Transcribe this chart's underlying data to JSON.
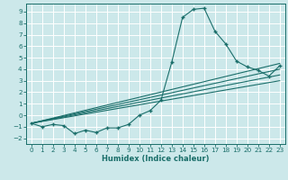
{
  "xlabel": "Humidex (Indice chaleur)",
  "bg_color": "#cce8ea",
  "grid_color": "#b0d0d5",
  "line_color": "#1a6e6a",
  "xlim": [
    -0.5,
    23.5
  ],
  "ylim": [
    -2.5,
    9.7
  ],
  "xticks": [
    0,
    1,
    2,
    3,
    4,
    5,
    6,
    7,
    8,
    9,
    10,
    11,
    12,
    13,
    14,
    15,
    16,
    17,
    18,
    19,
    20,
    21,
    22,
    23
  ],
  "yticks": [
    -2,
    -1,
    0,
    1,
    2,
    3,
    4,
    5,
    6,
    7,
    8,
    9
  ],
  "main_x": [
    0,
    1,
    2,
    3,
    4,
    5,
    6,
    7,
    8,
    9,
    10,
    11,
    12,
    13,
    14,
    15,
    16,
    17,
    18,
    19,
    20,
    21,
    22,
    23
  ],
  "main_y": [
    -0.7,
    -1.0,
    -0.8,
    -0.9,
    -1.6,
    -1.3,
    -1.5,
    -1.1,
    -1.1,
    -0.8,
    -0.0,
    0.4,
    1.3,
    4.6,
    8.5,
    9.2,
    9.3,
    7.3,
    6.2,
    4.7,
    4.2,
    3.9,
    3.4,
    4.3
  ],
  "reg_lines": [
    {
      "x0": 0,
      "y0": -0.7,
      "x1": 23,
      "y1": 4.5
    },
    {
      "x0": 0,
      "y0": -0.7,
      "x1": 23,
      "y1": 4.0
    },
    {
      "x0": 0,
      "y0": -0.7,
      "x1": 23,
      "y1": 3.5
    },
    {
      "x0": 0,
      "y0": -0.7,
      "x1": 23,
      "y1": 3.0
    }
  ]
}
